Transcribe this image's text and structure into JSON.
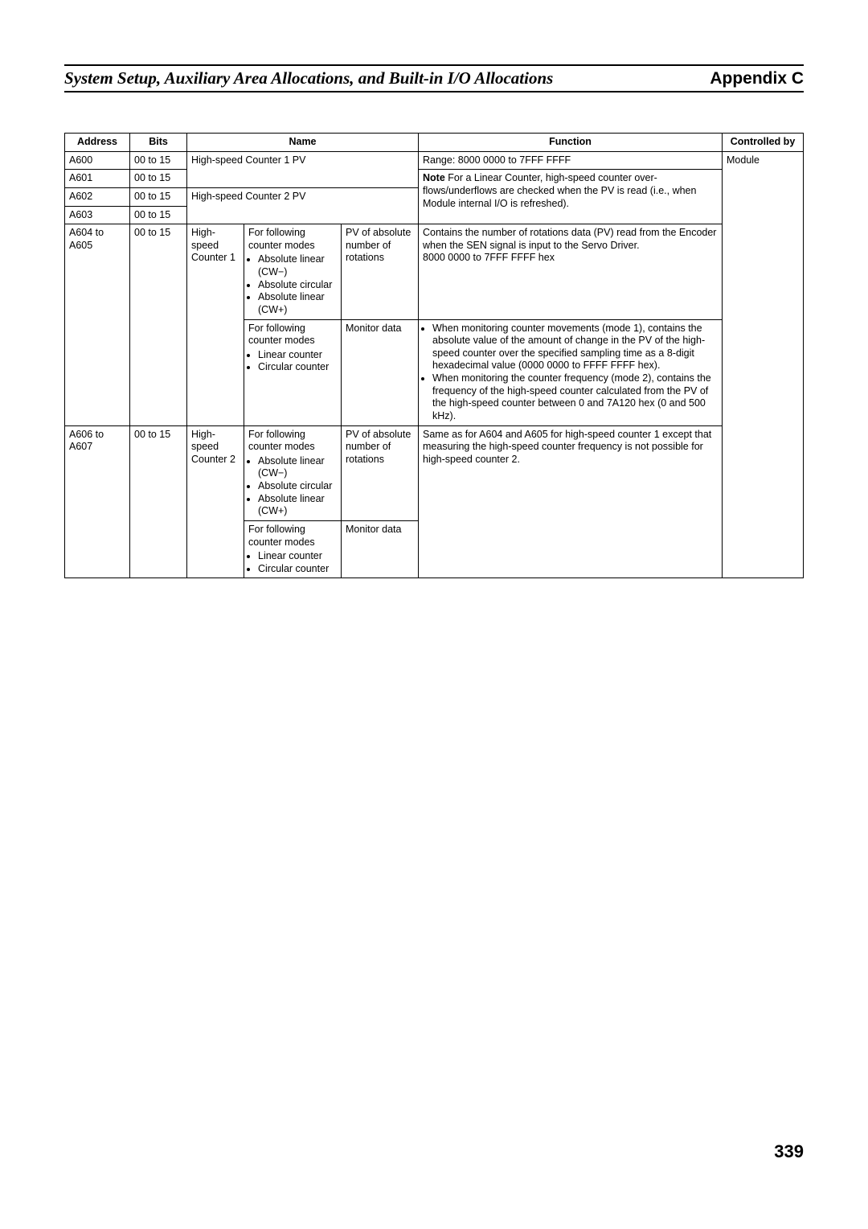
{
  "header": {
    "title_left": "System Setup, Auxiliary Area Allocations, and Built-in I/O Allocations",
    "title_right": "Appendix C"
  },
  "table": {
    "head": {
      "address": "Address",
      "bits": "Bits",
      "name": "Name",
      "function": "Function",
      "controlled_by": "Controlled by"
    },
    "r1": {
      "addr": "A600",
      "bits": "00 to 15",
      "name": "High-speed Counter 1 PV",
      "func_line1": "Range: 8000 0000 to 7FFF FFFF",
      "ctrl": "Module"
    },
    "r2": {
      "addr": "A601",
      "bits": "00 to 15",
      "func_note_label": "Note",
      "func_note_rest1": " For a Linear Counter, high-speed counter over-",
      "func_note_rest2": "flows/underflows are checked when the PV is read (i.e., when Module internal I/O is refreshed)."
    },
    "r3": {
      "addr": "A602",
      "bits": "00 to 15",
      "name": "High-speed Counter 2 PV"
    },
    "r4": {
      "addr": "A603",
      "bits": "00 to 15"
    },
    "r5": {
      "addr": "A604 to A605",
      "bits": "00 to 15",
      "counter": "High-speed Counter 1",
      "modes_intro": "For following counter modes",
      "modes_b1": "Absolute linear (CW−)",
      "modes_b2": "Absolute circular",
      "modes_b3": "Absolute linear (CW+)",
      "pv": "PV of absolute number of rotations",
      "func_l1": "Contains the number of rotations data (PV) read from the Encoder when the SEN signal is input to the Servo Driver.",
      "func_l2": "8000 0000 to 7FFF FFFF hex"
    },
    "r6": {
      "modes_intro": "For following counter modes",
      "modes_b1": "Linear counter",
      "modes_b2": "Circular counter",
      "pv": "Monitor data",
      "func_b1": "When monitoring counter movements (mode 1), contains the absolute value of the amount of change in the PV of the high-speed counter over the specified sampling time as a 8-digit hexadecimal value (0000 0000 to FFFF FFFF hex).",
      "func_b2": "When monitoring the counter frequency (mode 2), contains the frequency of the high-speed counter calculated from the PV of the high-speed counter between 0 and 7A120 hex (0 and 500 kHz)."
    },
    "r7": {
      "addr": "A606 to A607",
      "bits": "00 to 15",
      "counter": "High-speed Counter 2",
      "modes_intro": "For following counter modes",
      "modes_b1": "Absolute linear (CW−)",
      "modes_b2": "Absolute circular",
      "modes_b3": "Absolute linear (CW+)",
      "pv": "PV of absolute number of rotations",
      "func": "Same as for A604 and A605 for high-speed counter 1 except that measuring the high-speed counter frequency is not possible for high-speed counter 2."
    },
    "r8": {
      "modes_intro": "For following counter modes",
      "modes_b1": "Linear counter",
      "modes_b2": "Circular counter",
      "pv": "Monitor data"
    }
  },
  "page_number": "339"
}
